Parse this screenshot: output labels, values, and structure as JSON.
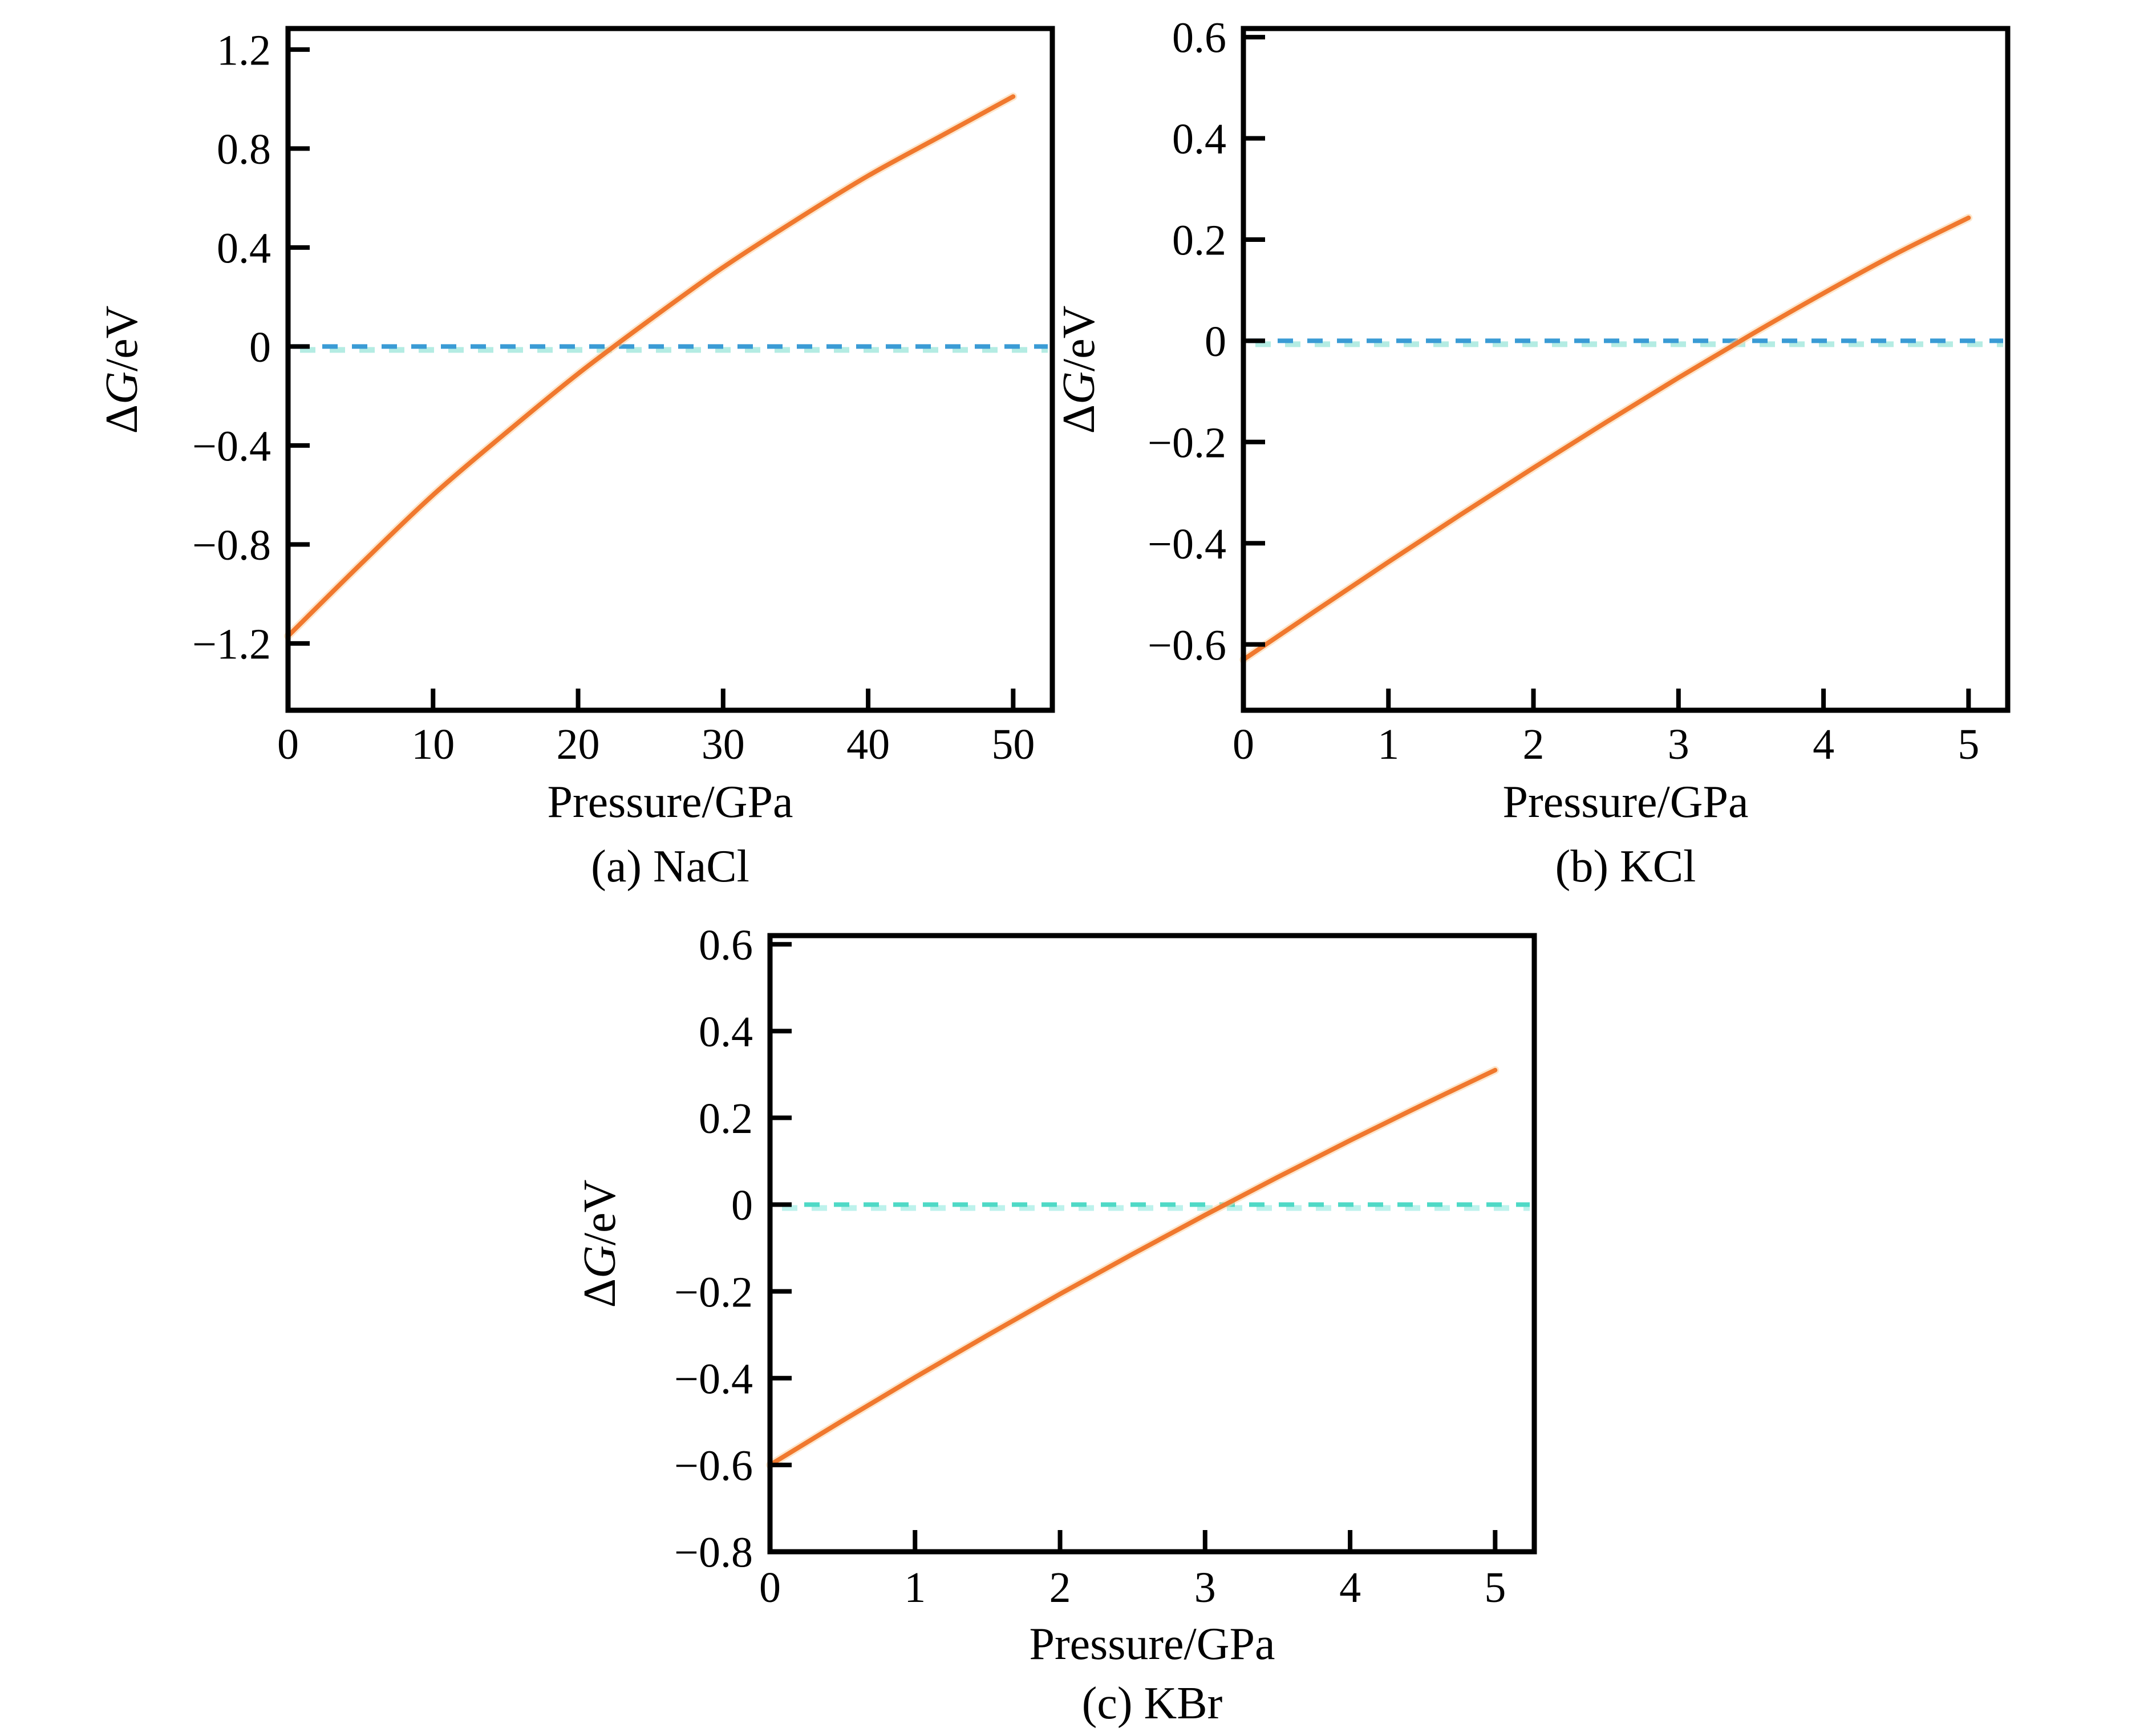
{
  "figure": {
    "background": "#ffffff"
  },
  "labels": {
    "delta": "Δ",
    "g": "G",
    "unit": "/eV"
  },
  "colors": {
    "axis": "#000000",
    "curve_orange": "#f0782e",
    "curve_halo": "#fcd2a0",
    "dash_blue": "#3a9bd5",
    "dash_cyan_underlay": "#b4ece3",
    "dash_turquoise": "#4fd9c6",
    "dash_turquoise_underlay": "#bdf2ec"
  },
  "chart_data": [
    {
      "id": "a",
      "type": "line",
      "title": "(a) NaCl",
      "xlabel": "Pressure/GPa",
      "ylabel": "ΔG/eV",
      "xlim": [
        0,
        52.7
      ],
      "ylim": [
        -1.47,
        1.285
      ],
      "xticks": [
        0,
        10,
        20,
        30,
        40,
        50
      ],
      "xtick_labels": [
        "0",
        "10",
        "20",
        "30",
        "40",
        "50"
      ],
      "yticks": [
        1.2,
        0.8,
        0.4,
        0,
        -0.4,
        -0.8,
        -1.2
      ],
      "ytick_labels": [
        "1.2",
        "0.8",
        "0.4",
        "0",
        "−0.4",
        "−0.8",
        "−1.2"
      ],
      "grid": false,
      "legend_position": "none",
      "zero_line": {
        "y": 0,
        "style": "dashed",
        "dash_color": "#3a9bd5",
        "underlay_color": "#b4ece3"
      },
      "series": [
        {
          "name": "ΔG",
          "color": "#f0782e",
          "x": [
            0,
            5,
            10,
            15,
            20,
            25,
            30,
            35,
            40,
            45,
            50
          ],
          "y": [
            -1.17,
            -0.88,
            -0.6,
            -0.35,
            -0.11,
            0.11,
            0.32,
            0.51,
            0.69,
            0.85,
            1.01
          ]
        }
      ]
    },
    {
      "id": "b",
      "type": "line",
      "title": "(b) KCl",
      "xlabel": "Pressure/GPa",
      "ylabel": "ΔG/eV",
      "xlim": [
        0,
        5.27
      ],
      "ylim": [
        -0.73,
        0.617
      ],
      "xticks": [
        0,
        1,
        2,
        3,
        4,
        5
      ],
      "xtick_labels": [
        "0",
        "1",
        "2",
        "3",
        "4",
        "5"
      ],
      "yticks": [
        0.6,
        0.4,
        0.2,
        0,
        -0.2,
        -0.4,
        -0.6
      ],
      "ytick_labels": [
        "0.6",
        "0.4",
        "0.2",
        "0",
        "−0.2",
        "−0.4",
        "−0.6"
      ],
      "grid": false,
      "legend_position": "none",
      "zero_line": {
        "y": 0,
        "style": "dashed",
        "dash_color": "#3a9bd5",
        "underlay_color": "#b4ece3"
      },
      "series": [
        {
          "name": "ΔG",
          "color": "#f0782e",
          "x": [
            0,
            0.5,
            1,
            1.5,
            2,
            2.5,
            3,
            3.5,
            4,
            4.5,
            5
          ],
          "y": [
            -0.63,
            -0.533,
            -0.437,
            -0.343,
            -0.251,
            -0.161,
            -0.073,
            0.012,
            0.094,
            0.172,
            0.243
          ]
        }
      ]
    },
    {
      "id": "c",
      "type": "line",
      "title": "(c) KBr",
      "xlabel": "Pressure/GPa",
      "ylabel": "ΔG/eV",
      "xlim": [
        0,
        5.27
      ],
      "ylim": [
        -0.8,
        0.62
      ],
      "xticks": [
        0,
        1,
        2,
        3,
        4,
        5
      ],
      "xtick_labels": [
        "0",
        "1",
        "2",
        "3",
        "4",
        "5"
      ],
      "yticks": [
        0.6,
        0.4,
        0.2,
        0,
        -0.2,
        -0.4,
        -0.6,
        -0.8
      ],
      "ytick_labels": [
        "0.6",
        "0.4",
        "0.2",
        "0",
        "−0.2",
        "−0.4",
        "−0.6",
        "−0.8"
      ],
      "grid": false,
      "legend_position": "none",
      "zero_line": {
        "y": 0,
        "style": "dashed",
        "dash_color": "#4fd9c6",
        "underlay_color": "#bdf2ec"
      },
      "series": [
        {
          "name": "ΔG",
          "color": "#f0782e",
          "x": [
            0,
            0.5,
            1,
            1.5,
            2,
            2.5,
            3,
            3.5,
            4,
            4.5,
            5
          ],
          "y": [
            -0.6,
            -0.498,
            -0.398,
            -0.301,
            -0.206,
            -0.114,
            -0.024,
            0.063,
            0.148,
            0.23,
            0.31
          ]
        }
      ]
    }
  ]
}
